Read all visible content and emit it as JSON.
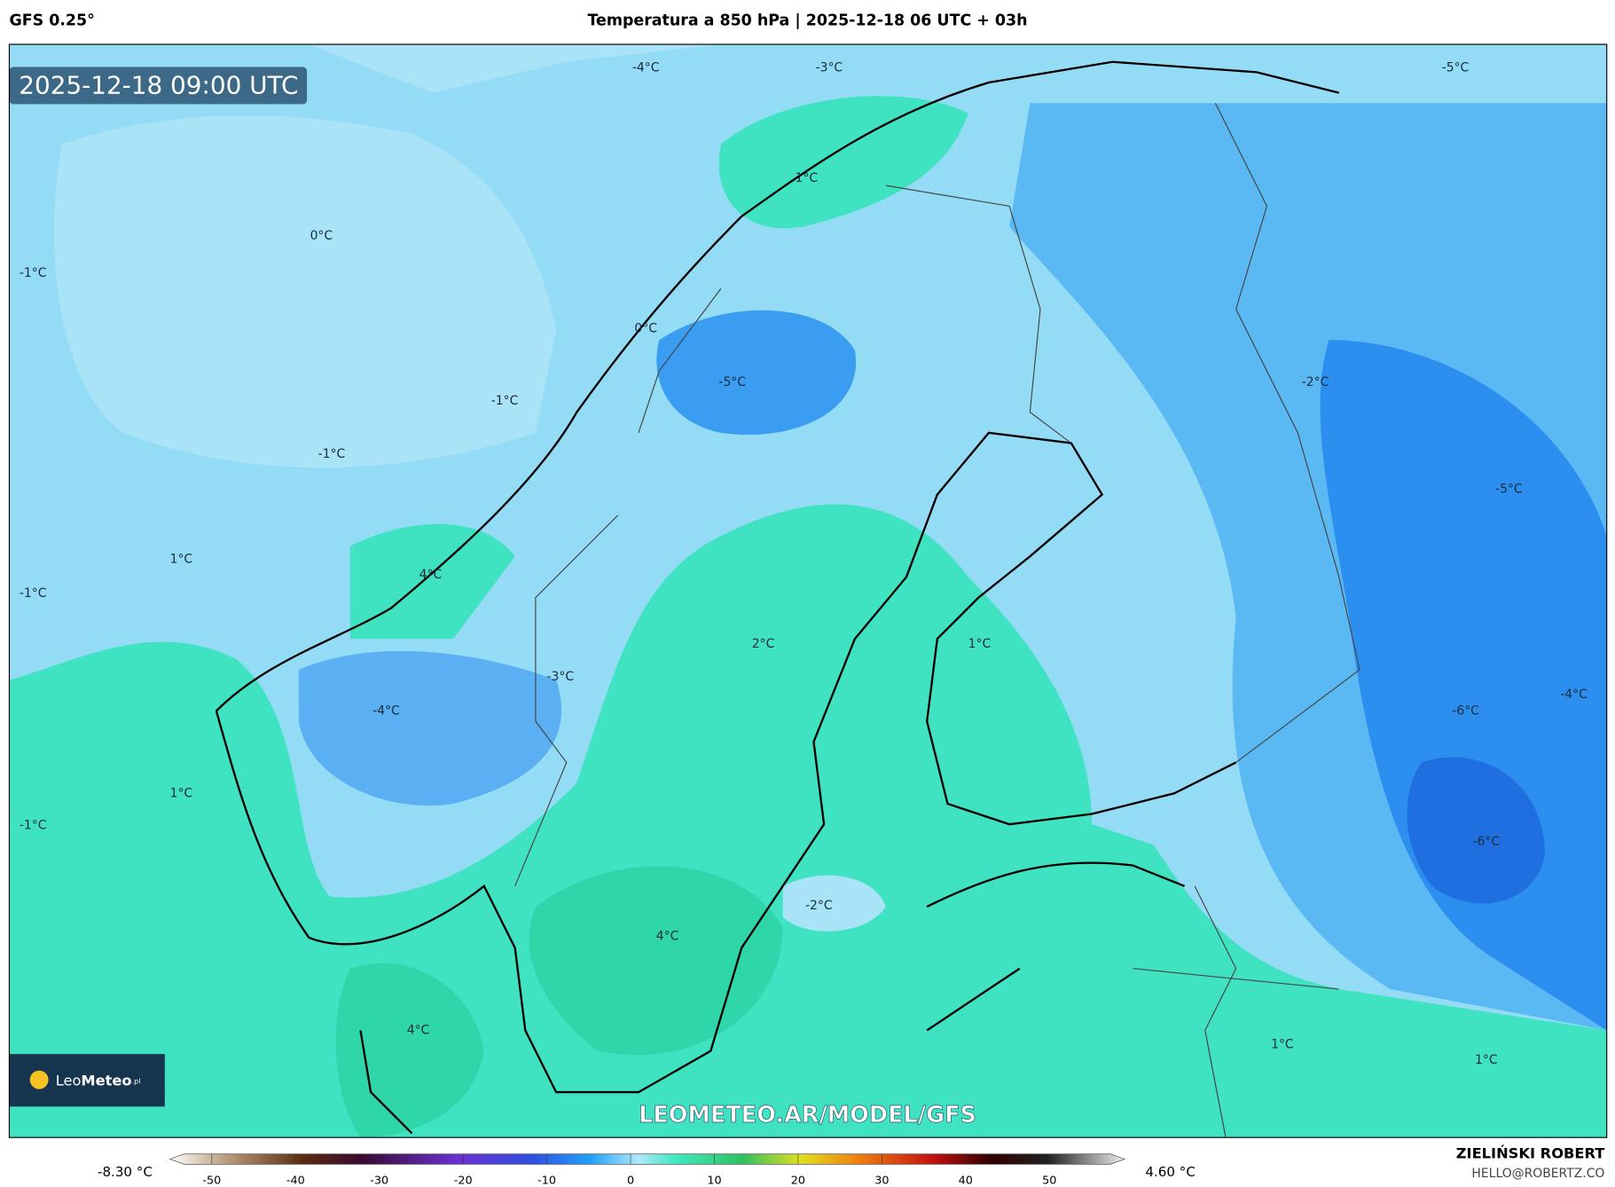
{
  "header": {
    "model": "GFS 0.25°",
    "title": "Temperatura a 850 hPa | 2025-12-18 06 UTC + 03h"
  },
  "map": {
    "timestamp": "2025-12-18 09:00 UTC",
    "watermark": "LEOMETEO.AR/MODEL/GFS",
    "logo": {
      "name": "Leo",
      "bold": "Meteo",
      "suffix": ".pl"
    },
    "contour_labels": [
      "-4°C",
      "-3°C",
      "-5°C",
      "1°C",
      "0°C",
      "-1°C",
      "0°C",
      "-5°C",
      "-2°C",
      "-1°C",
      "-1°C",
      "-5°C",
      "1°C",
      "-1°C",
      "4°C",
      "2°C",
      "1°C",
      "-3°C",
      "-4°C",
      "-4°C",
      "-6°C",
      "1°C",
      "-1°C",
      "-6°C",
      "-2°C",
      "4°C",
      "4°C",
      "1°C",
      "1°C"
    ]
  },
  "colorbar": {
    "min_label": "-8.30 °C",
    "max_label": "4.60 °C",
    "xlim": [
      -55,
      59
    ],
    "ticks": [
      -50,
      -40,
      -30,
      -20,
      -10,
      0,
      10,
      20,
      30,
      40,
      50
    ]
  },
  "credit": {
    "name": "ZIELIŃSKI ROBERT",
    "email": "HELLO@ROBERTZ.CO"
  }
}
